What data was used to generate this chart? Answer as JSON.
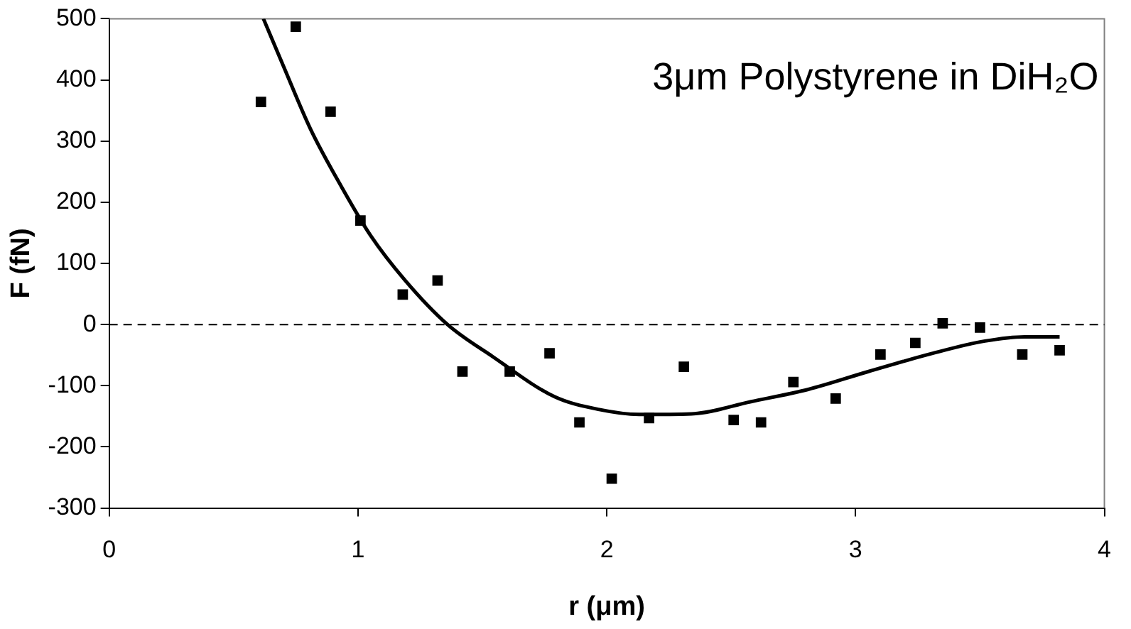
{
  "chart_data": {
    "type": "scatter",
    "xlabel": "r (μm)",
    "ylabel": "F (fN)",
    "annotations": [
      "3μm Polystyrene in DiH₂O"
    ],
    "xlim": [
      0,
      4
    ],
    "xticks": [
      0,
      1,
      2,
      3,
      4
    ],
    "ylim": [
      -300,
      500
    ],
    "yticks": [
      -300,
      -200,
      -100,
      0,
      100,
      200,
      300,
      400,
      500
    ],
    "grid": false,
    "legend": false,
    "ref_lines": [
      {
        "axis": "y",
        "value": 0,
        "color": "#000000",
        "line_style": "dashed"
      }
    ],
    "series": [
      {
        "color": "#000000",
        "marker": "square",
        "x": [
          0.61,
          0.75,
          0.89,
          1.01,
          1.18,
          1.32,
          1.42,
          1.61,
          1.77,
          1.89,
          2.02,
          2.17,
          2.31,
          2.51,
          2.62,
          2.75,
          2.92,
          3.1,
          3.24,
          3.35,
          3.5,
          3.67,
          3.82
        ],
        "values": [
          364,
          487,
          348,
          170,
          49,
          72,
          -77,
          -77,
          -47,
          -160,
          -252,
          -153,
          -69,
          -156,
          -160,
          -94,
          -121,
          -49,
          -30,
          2,
          -5,
          -49,
          -42
        ]
      },
      {
        "type": "line",
        "color": "#000000",
        "marker": "none",
        "line_style": "solid",
        "x": [
          0.62,
          0.7,
          0.81,
          0.93,
          1.05,
          1.19,
          1.36,
          1.54,
          1.79,
          1.97,
          2.13,
          2.34,
          2.58,
          2.81,
          3.05,
          3.31,
          3.52,
          3.68,
          3.82
        ],
        "values": [
          500,
          423,
          319,
          228,
          146,
          72,
          0,
          -52,
          -118,
          -139,
          -147,
          -146,
          -126,
          -106,
          -77,
          -47,
          -27,
          -20,
          -20
        ]
      }
    ]
  }
}
